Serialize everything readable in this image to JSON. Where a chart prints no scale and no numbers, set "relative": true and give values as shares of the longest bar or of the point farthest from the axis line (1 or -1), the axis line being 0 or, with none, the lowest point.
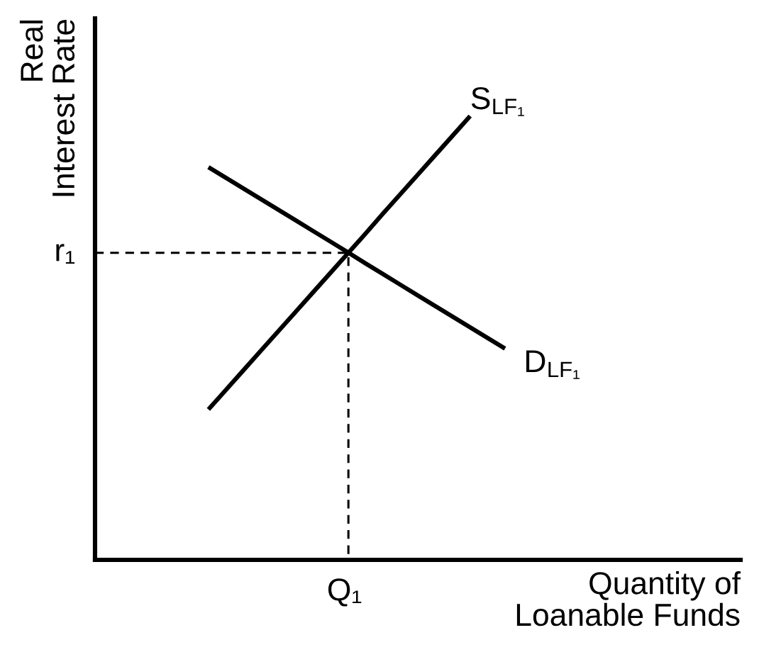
{
  "chart_data": {
    "type": "line",
    "relative": true,
    "line_style": "solid",
    "xlabel": "Quantity of\nLoanable Funds",
    "ylabel": "Real\nInterest Rate",
    "categories": [
      null,
      null,
      null,
      null,
      null,
      null,
      null,
      null,
      null,
      null,
      null,
      null,
      null,
      null,
      null,
      null,
      null,
      null,
      null,
      null,
      null,
      null,
      null,
      null,
      null,
      null,
      null,
      null,
      null,
      null,
      null,
      null,
      null,
      null,
      null,
      null,
      null
    ],
    "series": [
      {
        "name": "S$_{LF₁}$",
        "color": "#000000",
        "values": [
          null,
          null,
          null,
          null,
          null,
          null,
          0.339,
          0.383,
          0.427,
          0.471,
          0.515,
          0.559,
          0.603,
          0.647,
          0.691,
          0.735,
          0.78,
          0.824,
          0.868,
          0.912,
          0.956,
          1,
          null,
          null,
          null,
          null,
          null,
          null,
          null,
          null,
          null,
          null,
          null,
          null,
          null,
          null,
          null
        ]
      },
      {
        "name": "D$_{LF₁}$",
        "color": "#000000",
        "values": [
          null,
          null,
          null,
          null,
          null,
          null,
          0.885,
          0.861,
          0.837,
          0.813,
          0.789,
          0.765,
          0.741,
          0.717,
          0.693,
          0.668,
          0.644,
          0.62,
          0.596,
          0.572,
          0.548,
          0.524,
          0.5,
          0.476,
          null,
          null,
          null,
          null,
          null,
          null,
          null,
          null,
          null,
          null,
          null,
          null,
          null
        ]
      }
    ],
    "ref_lines": [
      {
        "axis": "y",
        "value": 0.692,
        "label": "r₁",
        "color": "#000000",
        "line_style": "dashed"
      }
    ],
    "annotations": [
      "Q₁"
    ]
  }
}
